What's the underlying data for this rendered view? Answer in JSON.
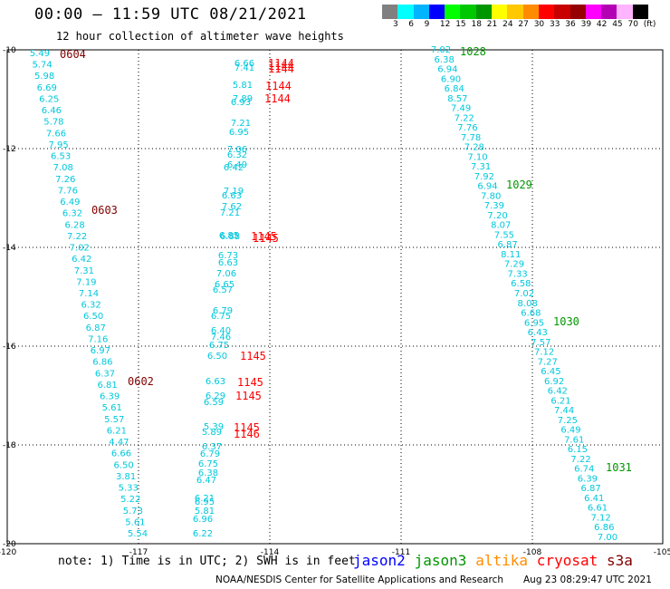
{
  "header": {
    "title": "00:00 – 11:59 UTC 08/21/2021",
    "subtitle": "12 hour collection of altimeter wave heights"
  },
  "color_scale": {
    "labels": [
      "3",
      "6",
      "9",
      "12",
      "15",
      "18",
      "21",
      "24",
      "27",
      "30",
      "33",
      "36",
      "39",
      "42",
      "45",
      "70",
      "(ft)"
    ],
    "colors": [
      "#808080",
      "#00ffff",
      "#00b4ff",
      "#0000ff",
      "#00ff00",
      "#00c800",
      "#009600",
      "#ffff00",
      "#ffc800",
      "#ff8c00",
      "#ff0000",
      "#c80000",
      "#960000",
      "#ff00ff",
      "#b400b4",
      "#ffb4ff",
      "#000000"
    ]
  },
  "axes": {
    "x_ticks": [
      "-120",
      "-117",
      "-114",
      "-111",
      "-108",
      "-105"
    ],
    "y_ticks": [
      "-10",
      "-12",
      "-14",
      "-16",
      "-18",
      "-20"
    ]
  },
  "swh_color": "#00c8dc",
  "time_colors": {
    "jason3": "#009600",
    "cryosat": "#ff0000",
    "s3a": "#800000"
  },
  "tracks": [
    {
      "name": "track-west",
      "values": [
        "5.49",
        "5.74",
        "5.98",
        "6.69",
        "6.25",
        "6.46",
        "5.78",
        "7.66",
        "7.95",
        "6.53",
        "7.08",
        "7.26",
        "7.76",
        "6.49",
        "6.32",
        "6.28",
        "7.22",
        "7.02",
        "6.42",
        "7.31",
        "7.19",
        "7.14",
        "6.32",
        "6.50",
        "6.87",
        "7.16",
        "6.97",
        "6.86",
        "6.37",
        "6.81",
        "6.39",
        "5.61",
        "5.57",
        "6.21",
        "4.47",
        "6.66",
        "6.50",
        "3.81",
        "5.33",
        "5.22",
        "5.73",
        "5.61",
        "5.54"
      ]
    },
    {
      "name": "track-mid",
      "values": [
        "6.66",
        "7.41",
        "5.81",
        "7.89",
        "6.93",
        "7.21",
        "6.95",
        "7.06",
        "6.32",
        "6.49",
        "6.42",
        "7.19",
        "6.63",
        "7.62",
        "7.21",
        "6.85",
        "6.88",
        "6.73",
        "6.63",
        "7.06",
        "6.65",
        "6.57",
        "6.79",
        "6.75",
        "6.40",
        "7.46",
        "6.75",
        "6.50",
        "6.63",
        "6.29",
        "6.59",
        "5.39",
        "5.89",
        "6.37",
        "6.79",
        "6.75",
        "6.38",
        "6.47",
        "6.21",
        "6.95",
        "5.81",
        "6.96",
        "6.22"
      ]
    },
    {
      "name": "track-east",
      "values": [
        "7.02",
        "6.38",
        "6.94",
        "6.90",
        "6.84",
        "8.57",
        "7.49",
        "7.22",
        "7.76",
        "7.78",
        "7.28",
        "7.10",
        "7.31",
        "7.92",
        "6.94",
        "7.80",
        "7.39",
        "7.20",
        "8.07",
        "7.55",
        "6.87",
        "8.11",
        "7.29",
        "7.33",
        "6.58",
        "7.02",
        "8.08",
        "6.68",
        "6.95",
        "6.43",
        "7.57",
        "7.12",
        "7.27",
        "6.45",
        "6.92",
        "6.42",
        "6.21",
        "7.44",
        "7.25",
        "6.49",
        "7.61",
        "6.15",
        "7.22",
        "6.74",
        "6.39",
        "6.87",
        "6.41",
        "6.61",
        "7.12",
        "6.86",
        "7.00"
      ]
    }
  ],
  "time_labels": [
    {
      "text": "0604",
      "sat": "s3a"
    },
    {
      "text": "0603",
      "sat": "s3a"
    },
    {
      "text": "0602",
      "sat": "s3a"
    },
    {
      "text": "1144",
      "sat": "cryosat"
    },
    {
      "text": "1144",
      "sat": "cryosat"
    },
    {
      "text": "1144",
      "sat": "cryosat"
    },
    {
      "text": "1144",
      "sat": "cryosat"
    },
    {
      "text": "1144",
      "sat": "cryosat"
    },
    {
      "text": "1145",
      "sat": "cryosat"
    },
    {
      "text": "1145",
      "sat": "cryosat"
    },
    {
      "text": "1145",
      "sat": "cryosat"
    },
    {
      "text": "1145",
      "sat": "cryosat"
    },
    {
      "text": "1145",
      "sat": "cryosat"
    },
    {
      "text": "1145",
      "sat": "cryosat"
    },
    {
      "text": "1146",
      "sat": "cryosat"
    },
    {
      "text": "1028",
      "sat": "jason3"
    },
    {
      "text": "1029",
      "sat": "jason3"
    },
    {
      "text": "1030",
      "sat": "jason3"
    },
    {
      "text": "1031",
      "sat": "jason3"
    }
  ],
  "note": "note: 1) Time is in UTC; 2) SWH is in feet",
  "legend": [
    {
      "label": "jason2",
      "color": "#0000ff"
    },
    {
      "label": "jason3",
      "color": "#009600"
    },
    {
      "label": "altika",
      "color": "#ff8c00"
    },
    {
      "label": "cryosat",
      "color": "#ff0000"
    },
    {
      "label": "s3a",
      "color": "#800000"
    }
  ],
  "footer": "NOAA/NESDIS Center for Satellite Applications and Research",
  "footer_time": "Aug 23 08:29:47 UTC 2021"
}
